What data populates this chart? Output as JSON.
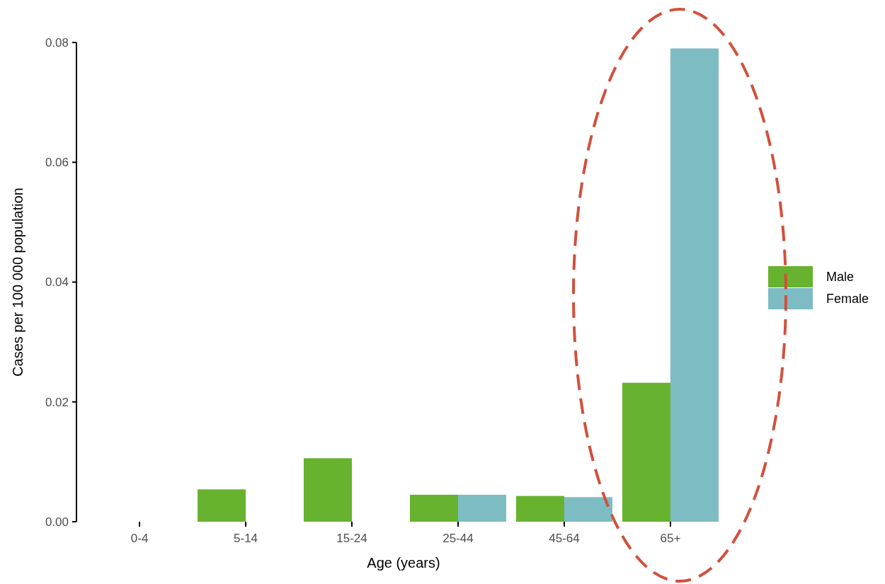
{
  "chart_data": {
    "type": "bar",
    "xlabel": "Age (years)",
    "ylabel": "Cases per 100 000 population",
    "categories": [
      "0-4",
      "5-14",
      "15-24",
      "25-44",
      "45-64",
      "65+"
    ],
    "series": [
      {
        "name": "Male",
        "color": "#67b22f",
        "values": [
          0,
          0.0054,
          0.0106,
          0.0045,
          0.0043,
          0.0232
        ]
      },
      {
        "name": "Female",
        "color": "#7dbcc3",
        "values": [
          0,
          0,
          0,
          0.0045,
          0.0041,
          0.079
        ]
      }
    ],
    "ylim": [
      0,
      0.08
    ],
    "yticks": [
      {
        "value": 0,
        "label": "0.00"
      },
      0.02,
      0.04,
      0.06,
      0.08
    ],
    "grid": false,
    "legend": "right"
  }
}
